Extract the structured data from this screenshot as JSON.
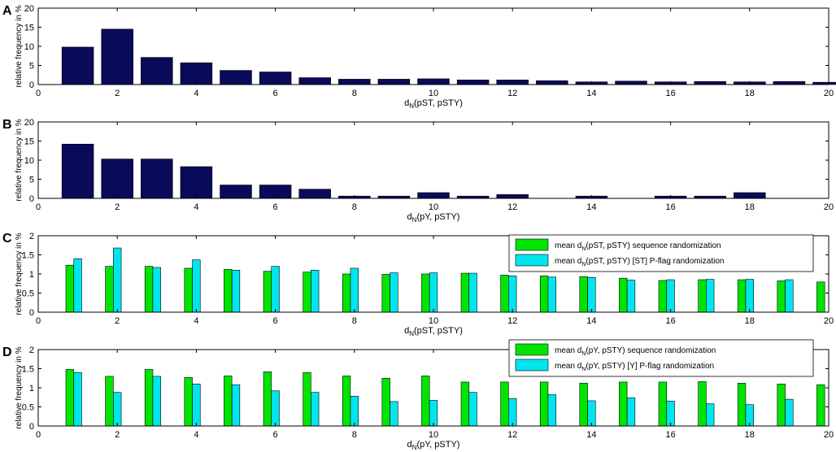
{
  "chart_data": [
    {
      "panel": "A",
      "type": "bar",
      "x": [
        1,
        2,
        3,
        4,
        5,
        6,
        7,
        8,
        9,
        10,
        11,
        12,
        13,
        14,
        15,
        16,
        17,
        18,
        19,
        20
      ],
      "series": [
        {
          "values": [
            9.8,
            14.5,
            7.1,
            5.7,
            3.7,
            3.3,
            1.8,
            1.4,
            1.4,
            1.5,
            1.2,
            1.2,
            1.0,
            0.7,
            0.9,
            0.7,
            0.8,
            0.7,
            0.8,
            0.6
          ]
        }
      ],
      "xlim": [
        0,
        20
      ],
      "ylim": [
        0,
        20
      ],
      "xticks": [
        "0",
        "2",
        "4",
        "6",
        "8",
        "10",
        "12",
        "14",
        "16",
        "18",
        "20"
      ],
      "yticks": [
        "0",
        "5",
        "10",
        "15",
        "20"
      ],
      "ylabel": "relative frequency in %",
      "xlabel": {
        "main": "d",
        "sub": "N",
        "rest": "(pST, pSTY)"
      },
      "colors": [
        "#0a0a5a"
      ],
      "legend": []
    },
    {
      "panel": "B",
      "type": "bar",
      "x": [
        1,
        2,
        3,
        4,
        5,
        6,
        7,
        8,
        9,
        10,
        11,
        12,
        13,
        14,
        15,
        16,
        17,
        18,
        19,
        20
      ],
      "series": [
        {
          "values": [
            14.2,
            10.3,
            10.3,
            8.3,
            3.5,
            3.5,
            2.4,
            0.6,
            0.6,
            1.5,
            0.6,
            1.0,
            0,
            0.6,
            0,
            0.6,
            0.6,
            1.5,
            0,
            0
          ]
        }
      ],
      "xlim": [
        0,
        20
      ],
      "ylim": [
        0,
        20
      ],
      "xticks": [
        "0",
        "2",
        "4",
        "6",
        "8",
        "10",
        "12",
        "14",
        "16",
        "18",
        "20"
      ],
      "yticks": [
        "0",
        "5",
        "10",
        "15",
        "20"
      ],
      "ylabel": "relative frequency in %",
      "xlabel": {
        "main": "d",
        "sub": "N",
        "rest": "(pY, pSTY)"
      },
      "colors": [
        "#0a0a5a"
      ],
      "legend": []
    },
    {
      "panel": "C",
      "type": "bar",
      "x": [
        1,
        2,
        3,
        4,
        5,
        6,
        7,
        8,
        9,
        10,
        11,
        12,
        13,
        14,
        15,
        16,
        17,
        18,
        19,
        20
      ],
      "series": [
        {
          "values": [
            1.23,
            1.2,
            1.2,
            1.15,
            1.12,
            1.07,
            1.05,
            1.0,
            0.99,
            1.0,
            1.02,
            0.97,
            0.95,
            0.93,
            0.89,
            0.83,
            0.85,
            0.85,
            0.82,
            0.79
          ]
        },
        {
          "values": [
            1.4,
            1.68,
            1.17,
            1.37,
            1.1,
            1.2,
            1.1,
            1.15,
            1.03,
            1.03,
            1.02,
            0.95,
            0.92,
            0.91,
            0.84,
            0.85,
            0.86,
            0.86,
            0.85,
            0
          ]
        }
      ],
      "xlim": [
        0,
        20
      ],
      "ylim": [
        0,
        2
      ],
      "xticks": [
        "0",
        "2",
        "4",
        "6",
        "8",
        "10",
        "12",
        "14",
        "16",
        "18",
        "20"
      ],
      "yticks": [
        "0",
        "0.5",
        "1",
        "1.5",
        "2"
      ],
      "ylabel": "relative frequency in %",
      "xlabel": {
        "main": "d",
        "sub": "N",
        "rest": "(pST, pSTY)"
      },
      "colors": [
        "#00e400",
        "#00e5ee"
      ],
      "legend": [
        {
          "pre": "mean d",
          "sub": "N",
          "post": "(pST, pSTY) sequence randomization"
        },
        {
          "pre": "mean d",
          "sub": "N",
          "post": "(pST, pSTY) [ST] P-flag randomization"
        }
      ]
    },
    {
      "panel": "D",
      "type": "bar",
      "x": [
        1,
        2,
        3,
        4,
        5,
        6,
        7,
        8,
        9,
        10,
        11,
        12,
        13,
        14,
        15,
        16,
        17,
        18,
        19,
        20
      ],
      "series": [
        {
          "values": [
            1.48,
            1.3,
            1.48,
            1.27,
            1.31,
            1.42,
            1.4,
            1.31,
            1.25,
            1.31,
            1.15,
            1.15,
            1.15,
            1.12,
            1.15,
            1.15,
            1.16,
            1.12,
            1.1,
            1.08
          ]
        },
        {
          "values": [
            1.4,
            0.88,
            1.3,
            1.1,
            1.08,
            0.92,
            0.88,
            0.78,
            0.64,
            0.67,
            0.88,
            0.72,
            0.82,
            0.66,
            0.74,
            0.65,
            0.58,
            0.56,
            0.7,
            0
          ]
        }
      ],
      "xlim": [
        0,
        20
      ],
      "ylim": [
        0,
        2
      ],
      "xticks": [
        "0",
        "2",
        "4",
        "6",
        "8",
        "10",
        "12",
        "14",
        "16",
        "18",
        "20"
      ],
      "yticks": [
        "0",
        "0.5",
        "1",
        "1.5",
        "2"
      ],
      "ylabel": "relative frequency in %",
      "xlabel": {
        "main": "d",
        "sub": "N",
        "rest": "(pY, pSTY)"
      },
      "colors": [
        "#00e400",
        "#00e5ee"
      ],
      "legend": [
        {
          "pre": "mean d",
          "sub": "N",
          "post": "(pY, pSTY) sequence randomization"
        },
        {
          "pre": "mean d",
          "sub": "N",
          "post": "(pY, pSTY) [Y] P-flag randomization"
        }
      ]
    }
  ]
}
